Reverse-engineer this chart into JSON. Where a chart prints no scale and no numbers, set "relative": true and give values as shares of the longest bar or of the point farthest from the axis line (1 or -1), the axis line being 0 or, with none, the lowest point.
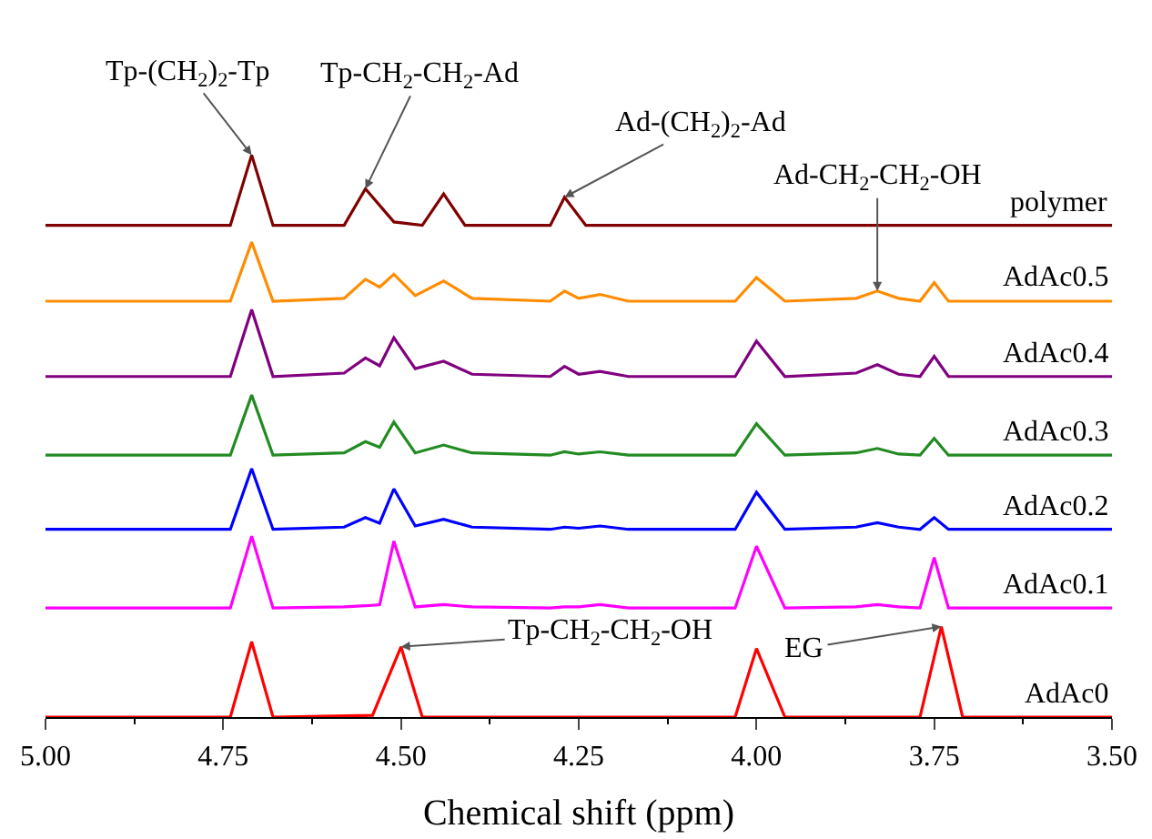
{
  "chart_data": {
    "type": "line",
    "relative": true,
    "xlabel": "Chemical shift (ppm)",
    "xlim": [
      5.0,
      3.5
    ],
    "xticks": [
      {
        "value": 5.0,
        "label": "5.00"
      },
      {
        "value": 4.75,
        "label": "4.75"
      },
      {
        "value": 4.5,
        "label": "4.50"
      },
      {
        "value": 4.25,
        "label": "4.25"
      },
      {
        "value": 4.0,
        "label": "4.00"
      },
      {
        "value": 3.75,
        "label": "3.75"
      },
      {
        "value": 3.5,
        "label": "3.50"
      }
    ],
    "legend": false,
    "marker": "none",
    "line_style": "solid",
    "series": [
      {
        "name": "polymer",
        "color": "#800000",
        "x": [
          5.0,
          4.74,
          4.71,
          4.68,
          4.58,
          4.55,
          4.51,
          4.47,
          4.44,
          4.41,
          4.29,
          4.27,
          4.24,
          3.5
        ],
        "values": [
          0.875,
          0.875,
          1.0,
          0.875,
          0.875,
          0.94,
          0.881,
          0.875,
          0.931,
          0.875,
          0.875,
          0.925,
          0.875,
          0.875
        ]
      },
      {
        "name": "AdAc0.5",
        "color": "#ff8c00",
        "x": [
          5.0,
          4.74,
          4.71,
          4.68,
          4.58,
          4.55,
          4.53,
          4.51,
          4.48,
          4.44,
          4.4,
          4.29,
          4.27,
          4.25,
          4.22,
          4.18,
          4.03,
          4.0,
          3.96,
          3.86,
          3.83,
          3.8,
          3.77,
          3.75,
          3.73,
          3.5
        ],
        "values": [
          0.74,
          0.74,
          0.845,
          0.74,
          0.745,
          0.779,
          0.765,
          0.788,
          0.75,
          0.776,
          0.745,
          0.74,
          0.758,
          0.745,
          0.752,
          0.74,
          0.74,
          0.782,
          0.74,
          0.745,
          0.758,
          0.745,
          0.74,
          0.773,
          0.74,
          0.74
        ]
      },
      {
        "name": "AdAc0.4",
        "color": "#800080",
        "x": [
          5.0,
          4.74,
          4.71,
          4.68,
          4.58,
          4.55,
          4.53,
          4.51,
          4.48,
          4.44,
          4.4,
          4.29,
          4.27,
          4.25,
          4.22,
          4.18,
          4.03,
          4.0,
          3.96,
          3.86,
          3.83,
          3.8,
          3.77,
          3.75,
          3.73,
          3.5
        ],
        "values": [
          0.606,
          0.606,
          0.725,
          0.606,
          0.612,
          0.639,
          0.625,
          0.675,
          0.62,
          0.633,
          0.61,
          0.606,
          0.624,
          0.61,
          0.615,
          0.606,
          0.606,
          0.669,
          0.606,
          0.612,
          0.627,
          0.61,
          0.606,
          0.642,
          0.606,
          0.606
        ]
      },
      {
        "name": "AdAc0.3",
        "color": "#228b22",
        "x": [
          5.0,
          4.74,
          4.71,
          4.68,
          4.58,
          4.55,
          4.53,
          4.51,
          4.48,
          4.44,
          4.4,
          4.29,
          4.27,
          4.25,
          4.22,
          4.18,
          4.03,
          4.0,
          3.96,
          3.86,
          3.83,
          3.8,
          3.77,
          3.75,
          3.73,
          3.5
        ],
        "values": [
          0.466,
          0.466,
          0.573,
          0.466,
          0.47,
          0.49,
          0.48,
          0.525,
          0.47,
          0.484,
          0.47,
          0.466,
          0.472,
          0.468,
          0.472,
          0.466,
          0.466,
          0.522,
          0.466,
          0.47,
          0.478,
          0.468,
          0.466,
          0.496,
          0.466,
          0.466
        ]
      },
      {
        "name": "AdAc0.2",
        "color": "#0000ff",
        "x": [
          5.0,
          4.74,
          4.71,
          4.68,
          4.58,
          4.55,
          4.53,
          4.51,
          4.48,
          4.44,
          4.4,
          4.29,
          4.27,
          4.25,
          4.22,
          4.18,
          4.03,
          4.0,
          3.96,
          3.86,
          3.83,
          3.8,
          3.77,
          3.75,
          3.73,
          3.5
        ],
        "values": [
          0.334,
          0.334,
          0.442,
          0.334,
          0.338,
          0.355,
          0.345,
          0.406,
          0.34,
          0.352,
          0.338,
          0.334,
          0.338,
          0.336,
          0.34,
          0.334,
          0.334,
          0.4,
          0.334,
          0.338,
          0.346,
          0.338,
          0.334,
          0.355,
          0.334,
          0.334
        ]
      },
      {
        "name": "AdAc0.1",
        "color": "#ff00ff",
        "x": [
          5.0,
          4.74,
          4.71,
          4.68,
          4.58,
          4.55,
          4.53,
          4.51,
          4.48,
          4.44,
          4.4,
          4.29,
          4.27,
          4.25,
          4.22,
          4.18,
          4.03,
          4.0,
          3.96,
          3.86,
          3.83,
          3.8,
          3.77,
          3.75,
          3.73,
          3.5
        ],
        "values": [
          0.194,
          0.194,
          0.322,
          0.194,
          0.196,
          0.198,
          0.2,
          0.313,
          0.196,
          0.2,
          0.196,
          0.194,
          0.196,
          0.196,
          0.2,
          0.194,
          0.194,
          0.304,
          0.194,
          0.196,
          0.2,
          0.196,
          0.194,
          0.284,
          0.194,
          0.194
        ]
      },
      {
        "name": "AdAc0",
        "color": "#ff0000",
        "x": [
          5.0,
          4.74,
          4.71,
          4.68,
          4.54,
          4.5,
          4.47,
          4.03,
          4.0,
          3.96,
          3.77,
          3.74,
          3.71,
          3.5
        ],
        "values": [
          0,
          0,
          0.134,
          0,
          0.003,
          0.125,
          0,
          0,
          0.122,
          0,
          0,
          0.161,
          0,
          0
        ]
      }
    ],
    "annotations": [
      {
        "text": "Tp-(CH$_{2}$)$_{2}$-Tp",
        "x": 4.71,
        "y": 1.0
      },
      {
        "text": "Tp-CH$_{2}$-CH$_{2}$-Ad",
        "x": 4.55,
        "y": 0.94
      },
      {
        "text": "Ad-(CH$_{2}$)$_{2}$-Ad",
        "x": 4.27,
        "y": 0.925
      },
      {
        "text": "Ad-CH$_{2}$-CH$_{2}$-OH",
        "x": 3.83,
        "y": 0.758
      },
      {
        "text": "Tp-CH$_{2}$-CH$_{2}$-OH",
        "x": 4.5,
        "y": 0.125
      },
      {
        "text": "EG",
        "x": 3.74,
        "y": 0.161
      }
    ]
  }
}
